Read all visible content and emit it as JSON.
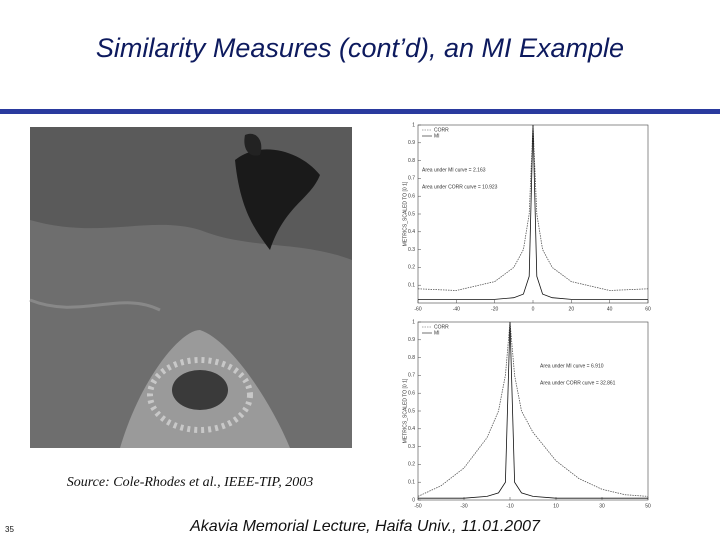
{
  "slide": {
    "title": "Similarity Measures (cont’d), an MI Example",
    "caption": "Source: Cole-Rhodes et al., IEEE-TIP, 2003",
    "page_number": "35",
    "footer": "Akavia Memorial Lecture, Haifa Univ., 11.01.2007"
  },
  "chart_data": [
    {
      "type": "line",
      "ylabel": "METRICS_SCALED TO [0 1]",
      "annotations": [
        "Area under MI curve = 2.163",
        "Area under CORR curve = 10.923"
      ],
      "x": [
        -60,
        -40,
        -20,
        -10,
        -5,
        -2,
        0,
        2,
        5,
        10,
        20,
        40,
        60
      ],
      "series": [
        {
          "name": "CORR",
          "color": "#555555",
          "dash": true,
          "values": [
            0.08,
            0.07,
            0.12,
            0.2,
            0.3,
            0.5,
            1,
            0.5,
            0.3,
            0.2,
            0.12,
            0.07,
            0.08
          ]
        },
        {
          "name": "MI",
          "color": "#111111",
          "dash": false,
          "values": [
            0.02,
            0.02,
            0.02,
            0.03,
            0.05,
            0.15,
            1,
            0.15,
            0.05,
            0.03,
            0.02,
            0.02,
            0.02
          ]
        }
      ],
      "xlim": [
        -60,
        60
      ],
      "xticks": [
        -60,
        -40,
        -20,
        0,
        20,
        40,
        60
      ],
      "ylim": [
        0,
        1
      ],
      "yticks": [
        0.1,
        0.2,
        0.3,
        0.4,
        0.5,
        0.6,
        0.7,
        0.8,
        0.9,
        1
      ]
    },
    {
      "type": "line",
      "ylabel": "METRICS_SCALED TO [0 1]",
      "annotations": [
        "Area under MI curve = 6.910",
        "Area under CORR curve = 32.861"
      ],
      "x": [
        -50,
        -40,
        -30,
        -20,
        -15,
        -12,
        -10,
        -8,
        -5,
        0,
        10,
        20,
        30,
        40,
        50
      ],
      "series": [
        {
          "name": "CORR",
          "color": "#555555",
          "dash": true,
          "values": [
            0.02,
            0.08,
            0.18,
            0.35,
            0.5,
            0.7,
            1,
            0.7,
            0.5,
            0.38,
            0.22,
            0.12,
            0.06,
            0.03,
            0.02
          ]
        },
        {
          "name": "MI",
          "color": "#111111",
          "dash": false,
          "values": [
            0.01,
            0.01,
            0.01,
            0.02,
            0.04,
            0.1,
            1,
            0.1,
            0.04,
            0.02,
            0.01,
            0.01,
            0.01,
            0.01,
            0.01
          ]
        }
      ],
      "xlim": [
        -50,
        50
      ],
      "xticks": [
        -50,
        -30,
        -10,
        10,
        30,
        50
      ],
      "ylim": [
        0,
        1
      ],
      "yticks": [
        0,
        0.1,
        0.2,
        0.3,
        0.4,
        0.5,
        0.6,
        0.7,
        0.8,
        0.9,
        1
      ]
    }
  ]
}
